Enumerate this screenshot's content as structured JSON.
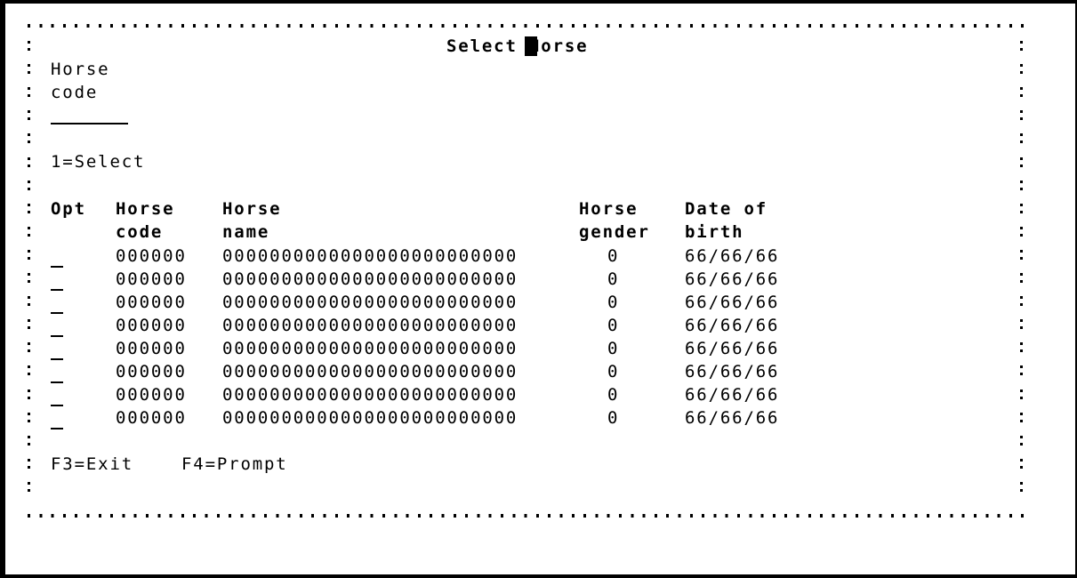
{
  "window": {
    "title": "Select Horse"
  },
  "filter": {
    "label_line1": "Horse",
    "label_line2": "code",
    "horse_code_value": ""
  },
  "options_legend": "1=Select",
  "table": {
    "headers": [
      {
        "line1": "Opt",
        "line2": ""
      },
      {
        "line1": "Horse",
        "line2": "code"
      },
      {
        "line1": "Horse",
        "line2": "name"
      },
      {
        "line1": "Horse",
        "line2": "gender"
      },
      {
        "line1": "Date of",
        "line2": "birth"
      }
    ],
    "rows": [
      {
        "opt": "",
        "code": "000000",
        "name": "0000000000000000000000000",
        "gender": "0",
        "dob": "66/66/66"
      },
      {
        "opt": "",
        "code": "000000",
        "name": "0000000000000000000000000",
        "gender": "0",
        "dob": "66/66/66"
      },
      {
        "opt": "",
        "code": "000000",
        "name": "0000000000000000000000000",
        "gender": "0",
        "dob": "66/66/66"
      },
      {
        "opt": "",
        "code": "000000",
        "name": "0000000000000000000000000",
        "gender": "0",
        "dob": "66/66/66"
      },
      {
        "opt": "",
        "code": "000000",
        "name": "0000000000000000000000000",
        "gender": "0",
        "dob": "66/66/66"
      },
      {
        "opt": "",
        "code": "000000",
        "name": "0000000000000000000000000",
        "gender": "0",
        "dob": "66/66/66"
      },
      {
        "opt": "",
        "code": "000000",
        "name": "0000000000000000000000000",
        "gender": "0",
        "dob": "66/66/66"
      },
      {
        "opt": "",
        "code": "000000",
        "name": "0000000000000000000000000",
        "gender": "0",
        "dob": "66/66/66"
      }
    ]
  },
  "function_keys": [
    "F3=Exit",
    "F4=Prompt"
  ]
}
